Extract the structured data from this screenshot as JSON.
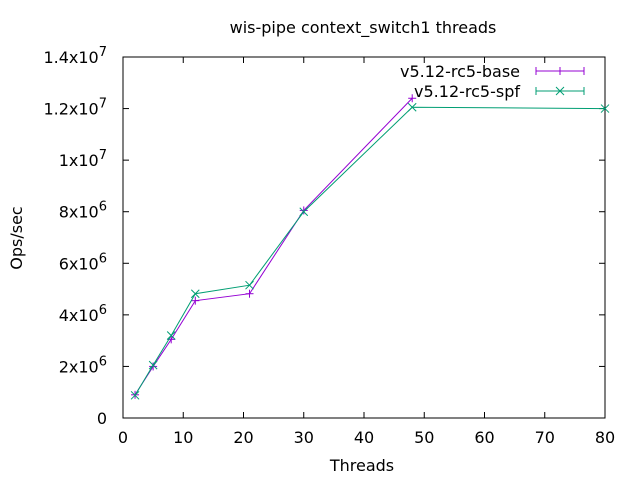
{
  "chart_data": {
    "type": "line",
    "title": "wis-pipe context_switch1 threads",
    "xlabel": "Threads",
    "ylabel": "Ops/sec",
    "xlim": [
      0,
      80
    ],
    "ylim": [
      0,
      14000000
    ],
    "grid": false,
    "legend_position": "top-right",
    "x_ticks": [
      {
        "value": 0,
        "label": "0"
      },
      {
        "value": 10,
        "label": "10"
      },
      {
        "value": 20,
        "label": "20"
      },
      {
        "value": 30,
        "label": "30"
      },
      {
        "value": 40,
        "label": "40"
      },
      {
        "value": 50,
        "label": "50"
      },
      {
        "value": 60,
        "label": "60"
      },
      {
        "value": 70,
        "label": "70"
      },
      {
        "value": 80,
        "label": "80"
      }
    ],
    "y_ticks": [
      {
        "value": 0,
        "mantissa": "0",
        "exp": ""
      },
      {
        "value": 2000000,
        "mantissa": "2x10",
        "exp": "6"
      },
      {
        "value": 4000000,
        "mantissa": "4x10",
        "exp": "6"
      },
      {
        "value": 6000000,
        "mantissa": "6x10",
        "exp": "6"
      },
      {
        "value": 8000000,
        "mantissa": "8x10",
        "exp": "6"
      },
      {
        "value": 10000000,
        "mantissa": "1x10",
        "exp": "7"
      },
      {
        "value": 12000000,
        "mantissa": "1.2x10",
        "exp": "7"
      },
      {
        "value": 14000000,
        "mantissa": "1.4x10",
        "exp": "7"
      }
    ],
    "series": [
      {
        "name": "v5.12-rc5-base",
        "color": "#9400d3",
        "marker": "plus",
        "x": [
          2,
          5,
          8,
          12,
          21,
          30,
          48
        ],
        "y": [
          900000,
          2000000,
          3050000,
          4550000,
          4820000,
          8050000,
          12400000
        ]
      },
      {
        "name": "v5.12-rc5-spf",
        "color": "#009e73",
        "marker": "cross",
        "x": [
          2,
          5,
          8,
          12,
          21,
          30,
          48,
          80
        ],
        "y": [
          880000,
          2050000,
          3200000,
          4820000,
          5150000,
          8000000,
          12050000,
          12000000
        ]
      }
    ]
  }
}
